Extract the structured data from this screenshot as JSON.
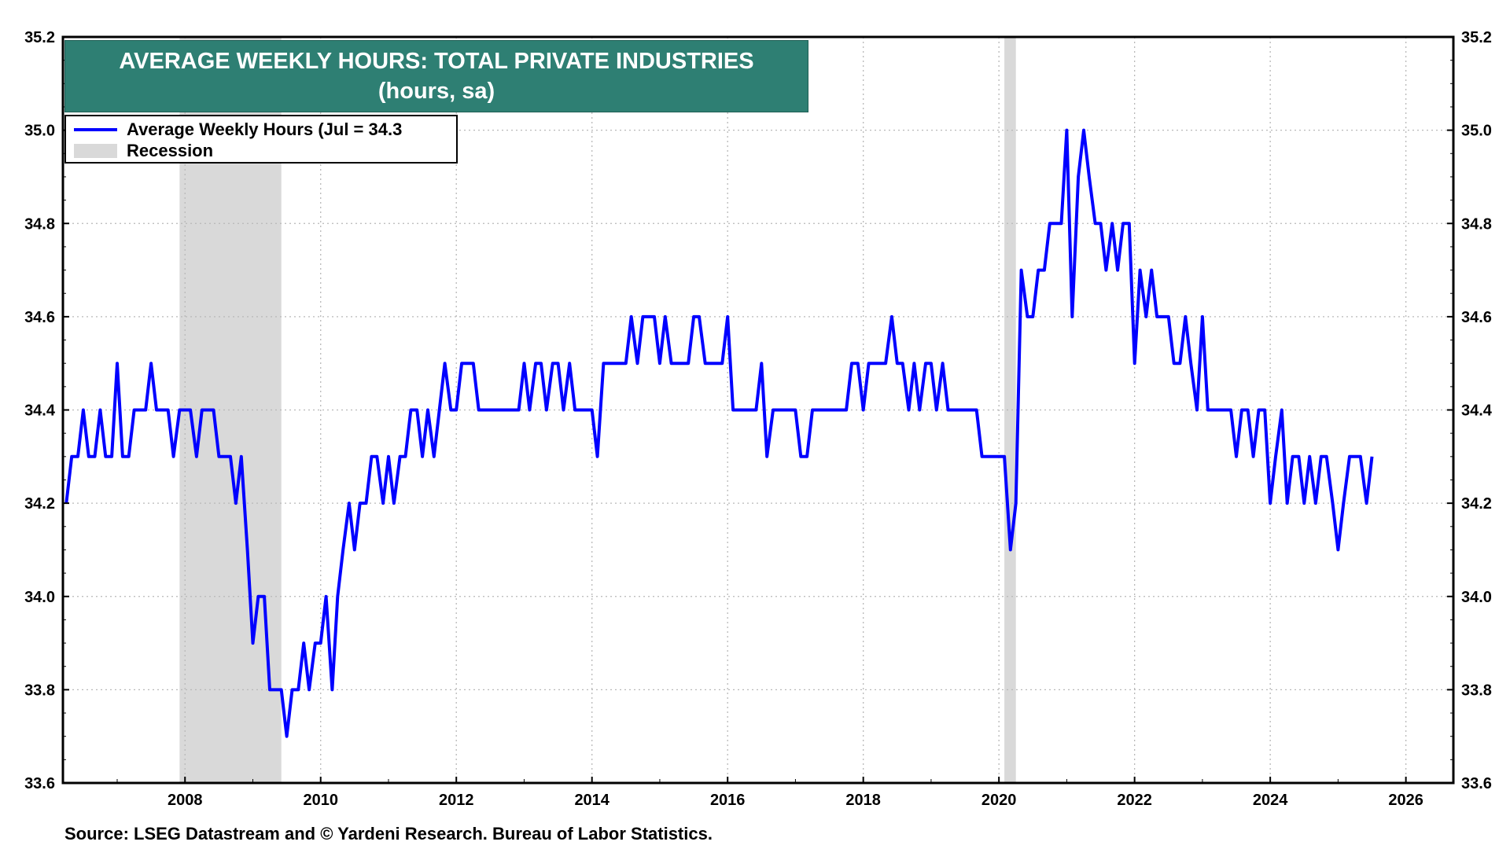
{
  "chart_data": {
    "type": "line",
    "title": "AVERAGE WEEKLY HOURS: TOTAL PRIVATE INDUSTRIES",
    "subtitle": "(hours, sa)",
    "source": "Source: LSEG Datastream and © Yardeni Research. Bureau of Labor Statistics.",
    "xlim": [
      2006.2,
      2026.7
    ],
    "ylim": [
      33.6,
      35.2
    ],
    "x_ticks": [
      "2008",
      "2010",
      "2012",
      "2014",
      "2016",
      "2018",
      "2020",
      "2022",
      "2024",
      "2026"
    ],
    "y_ticks": [
      "33.6",
      "33.8",
      "34.0",
      "34.2",
      "34.4",
      "34.6",
      "34.8",
      "35.0",
      "35.2"
    ],
    "grid": true,
    "legend_position": "top-left",
    "series": [
      {
        "name": "Average Weekly Hours (Jul = 34.3",
        "color": "#0000ff",
        "points": [
          [
            2006.25,
            34.2
          ],
          [
            2006.33,
            34.3
          ],
          [
            2006.42,
            34.3
          ],
          [
            2006.5,
            34.4
          ],
          [
            2006.58,
            34.3
          ],
          [
            2006.67,
            34.3
          ],
          [
            2006.75,
            34.4
          ],
          [
            2006.83,
            34.3
          ],
          [
            2006.92,
            34.3
          ],
          [
            2007.0,
            34.5
          ],
          [
            2007.08,
            34.3
          ],
          [
            2007.17,
            34.3
          ],
          [
            2007.25,
            34.4
          ],
          [
            2007.33,
            34.4
          ],
          [
            2007.42,
            34.4
          ],
          [
            2007.5,
            34.5
          ],
          [
            2007.58,
            34.4
          ],
          [
            2007.67,
            34.4
          ],
          [
            2007.75,
            34.4
          ],
          [
            2007.83,
            34.3
          ],
          [
            2007.92,
            34.4
          ],
          [
            2008.0,
            34.4
          ],
          [
            2008.08,
            34.4
          ],
          [
            2008.17,
            34.3
          ],
          [
            2008.25,
            34.4
          ],
          [
            2008.33,
            34.4
          ],
          [
            2008.42,
            34.4
          ],
          [
            2008.5,
            34.3
          ],
          [
            2008.58,
            34.3
          ],
          [
            2008.67,
            34.3
          ],
          [
            2008.75,
            34.2
          ],
          [
            2008.83,
            34.3
          ],
          [
            2008.92,
            34.1
          ],
          [
            2009.0,
            33.9
          ],
          [
            2009.08,
            34.0
          ],
          [
            2009.17,
            34.0
          ],
          [
            2009.25,
            33.8
          ],
          [
            2009.33,
            33.8
          ],
          [
            2009.42,
            33.8
          ],
          [
            2009.5,
            33.7
          ],
          [
            2009.58,
            33.8
          ],
          [
            2009.67,
            33.8
          ],
          [
            2009.75,
            33.9
          ],
          [
            2009.83,
            33.8
          ],
          [
            2009.92,
            33.9
          ],
          [
            2010.0,
            33.9
          ],
          [
            2010.08,
            34.0
          ],
          [
            2010.17,
            33.8
          ],
          [
            2010.25,
            34.0
          ],
          [
            2010.33,
            34.1
          ],
          [
            2010.42,
            34.2
          ],
          [
            2010.5,
            34.1
          ],
          [
            2010.58,
            34.2
          ],
          [
            2010.67,
            34.2
          ],
          [
            2010.75,
            34.3
          ],
          [
            2010.83,
            34.3
          ],
          [
            2010.92,
            34.2
          ],
          [
            2011.0,
            34.3
          ],
          [
            2011.08,
            34.2
          ],
          [
            2011.17,
            34.3
          ],
          [
            2011.25,
            34.3
          ],
          [
            2011.33,
            34.4
          ],
          [
            2011.42,
            34.4
          ],
          [
            2011.5,
            34.3
          ],
          [
            2011.58,
            34.4
          ],
          [
            2011.67,
            34.3
          ],
          [
            2011.75,
            34.4
          ],
          [
            2011.83,
            34.5
          ],
          [
            2011.92,
            34.4
          ],
          [
            2012.0,
            34.4
          ],
          [
            2012.08,
            34.5
          ],
          [
            2012.17,
            34.5
          ],
          [
            2012.25,
            34.5
          ],
          [
            2012.33,
            34.4
          ],
          [
            2012.42,
            34.4
          ],
          [
            2012.5,
            34.4
          ],
          [
            2012.58,
            34.4
          ],
          [
            2012.67,
            34.4
          ],
          [
            2012.75,
            34.4
          ],
          [
            2012.83,
            34.4
          ],
          [
            2012.92,
            34.4
          ],
          [
            2013.0,
            34.5
          ],
          [
            2013.08,
            34.4
          ],
          [
            2013.17,
            34.5
          ],
          [
            2013.25,
            34.5
          ],
          [
            2013.33,
            34.4
          ],
          [
            2013.42,
            34.5
          ],
          [
            2013.5,
            34.5
          ],
          [
            2013.58,
            34.4
          ],
          [
            2013.67,
            34.5
          ],
          [
            2013.75,
            34.4
          ],
          [
            2013.83,
            34.4
          ],
          [
            2013.92,
            34.4
          ],
          [
            2014.0,
            34.4
          ],
          [
            2014.08,
            34.3
          ],
          [
            2014.17,
            34.5
          ],
          [
            2014.25,
            34.5
          ],
          [
            2014.33,
            34.5
          ],
          [
            2014.42,
            34.5
          ],
          [
            2014.5,
            34.5
          ],
          [
            2014.58,
            34.6
          ],
          [
            2014.67,
            34.5
          ],
          [
            2014.75,
            34.6
          ],
          [
            2014.83,
            34.6
          ],
          [
            2014.92,
            34.6
          ],
          [
            2015.0,
            34.5
          ],
          [
            2015.08,
            34.6
          ],
          [
            2015.17,
            34.5
          ],
          [
            2015.25,
            34.5
          ],
          [
            2015.33,
            34.5
          ],
          [
            2015.42,
            34.5
          ],
          [
            2015.5,
            34.6
          ],
          [
            2015.58,
            34.6
          ],
          [
            2015.67,
            34.5
          ],
          [
            2015.75,
            34.5
          ],
          [
            2015.83,
            34.5
          ],
          [
            2015.92,
            34.5
          ],
          [
            2016.0,
            34.6
          ],
          [
            2016.08,
            34.4
          ],
          [
            2016.17,
            34.4
          ],
          [
            2016.25,
            34.4
          ],
          [
            2016.33,
            34.4
          ],
          [
            2016.42,
            34.4
          ],
          [
            2016.5,
            34.5
          ],
          [
            2016.58,
            34.3
          ],
          [
            2016.67,
            34.4
          ],
          [
            2016.75,
            34.4
          ],
          [
            2016.83,
            34.4
          ],
          [
            2016.92,
            34.4
          ],
          [
            2017.0,
            34.4
          ],
          [
            2017.08,
            34.3
          ],
          [
            2017.17,
            34.3
          ],
          [
            2017.25,
            34.4
          ],
          [
            2017.33,
            34.4
          ],
          [
            2017.42,
            34.4
          ],
          [
            2017.5,
            34.4
          ],
          [
            2017.58,
            34.4
          ],
          [
            2017.67,
            34.4
          ],
          [
            2017.75,
            34.4
          ],
          [
            2017.83,
            34.5
          ],
          [
            2017.92,
            34.5
          ],
          [
            2018.0,
            34.4
          ],
          [
            2018.08,
            34.5
          ],
          [
            2018.17,
            34.5
          ],
          [
            2018.25,
            34.5
          ],
          [
            2018.33,
            34.5
          ],
          [
            2018.42,
            34.6
          ],
          [
            2018.5,
            34.5
          ],
          [
            2018.58,
            34.5
          ],
          [
            2018.67,
            34.4
          ],
          [
            2018.75,
            34.5
          ],
          [
            2018.83,
            34.4
          ],
          [
            2018.92,
            34.5
          ],
          [
            2019.0,
            34.5
          ],
          [
            2019.08,
            34.4
          ],
          [
            2019.17,
            34.5
          ],
          [
            2019.25,
            34.4
          ],
          [
            2019.33,
            34.4
          ],
          [
            2019.42,
            34.4
          ],
          [
            2019.5,
            34.4
          ],
          [
            2019.58,
            34.4
          ],
          [
            2019.67,
            34.4
          ],
          [
            2019.75,
            34.3
          ],
          [
            2019.83,
            34.3
          ],
          [
            2019.92,
            34.3
          ],
          [
            2020.0,
            34.3
          ],
          [
            2020.08,
            34.3
          ],
          [
            2020.17,
            34.1
          ],
          [
            2020.25,
            34.2
          ],
          [
            2020.33,
            34.7
          ],
          [
            2020.42,
            34.6
          ],
          [
            2020.5,
            34.6
          ],
          [
            2020.58,
            34.7
          ],
          [
            2020.67,
            34.7
          ],
          [
            2020.75,
            34.8
          ],
          [
            2020.83,
            34.8
          ],
          [
            2020.92,
            34.8
          ],
          [
            2021.0,
            35.0
          ],
          [
            2021.08,
            34.6
          ],
          [
            2021.17,
            34.9
          ],
          [
            2021.25,
            35.0
          ],
          [
            2021.33,
            34.9
          ],
          [
            2021.42,
            34.8
          ],
          [
            2021.5,
            34.8
          ],
          [
            2021.58,
            34.7
          ],
          [
            2021.67,
            34.8
          ],
          [
            2021.75,
            34.7
          ],
          [
            2021.83,
            34.8
          ],
          [
            2021.92,
            34.8
          ],
          [
            2022.0,
            34.5
          ],
          [
            2022.08,
            34.7
          ],
          [
            2022.17,
            34.6
          ],
          [
            2022.25,
            34.7
          ],
          [
            2022.33,
            34.6
          ],
          [
            2022.42,
            34.6
          ],
          [
            2022.5,
            34.6
          ],
          [
            2022.58,
            34.5
          ],
          [
            2022.67,
            34.5
          ],
          [
            2022.75,
            34.6
          ],
          [
            2022.83,
            34.5
          ],
          [
            2022.92,
            34.4
          ],
          [
            2023.0,
            34.6
          ],
          [
            2023.08,
            34.4
          ],
          [
            2023.17,
            34.4
          ],
          [
            2023.25,
            34.4
          ],
          [
            2023.33,
            34.4
          ],
          [
            2023.42,
            34.4
          ],
          [
            2023.5,
            34.3
          ],
          [
            2023.58,
            34.4
          ],
          [
            2023.67,
            34.4
          ],
          [
            2023.75,
            34.3
          ],
          [
            2023.83,
            34.4
          ],
          [
            2023.92,
            34.4
          ],
          [
            2024.0,
            34.2
          ],
          [
            2024.08,
            34.3
          ],
          [
            2024.17,
            34.4
          ],
          [
            2024.25,
            34.2
          ],
          [
            2024.33,
            34.3
          ],
          [
            2024.42,
            34.3
          ],
          [
            2024.5,
            34.2
          ],
          [
            2024.58,
            34.3
          ],
          [
            2024.67,
            34.2
          ],
          [
            2024.75,
            34.3
          ],
          [
            2024.83,
            34.3
          ],
          [
            2024.92,
            34.2
          ],
          [
            2025.0,
            34.1
          ],
          [
            2025.08,
            34.2
          ],
          [
            2025.17,
            34.3
          ],
          [
            2025.25,
            34.3
          ],
          [
            2025.33,
            34.3
          ],
          [
            2025.42,
            34.2
          ],
          [
            2025.5,
            34.3
          ]
        ]
      }
    ],
    "recessions": [
      {
        "name": "Recession",
        "start": 2007.92,
        "end": 2009.42,
        "color": "#d9d9d9"
      },
      {
        "name": "Recession",
        "start": 2020.08,
        "end": 2020.25,
        "color": "#d9d9d9"
      }
    ]
  },
  "legend": {
    "line_label": "Average Weekly Hours (Jul = 34.3",
    "recession_label": "Recession"
  }
}
